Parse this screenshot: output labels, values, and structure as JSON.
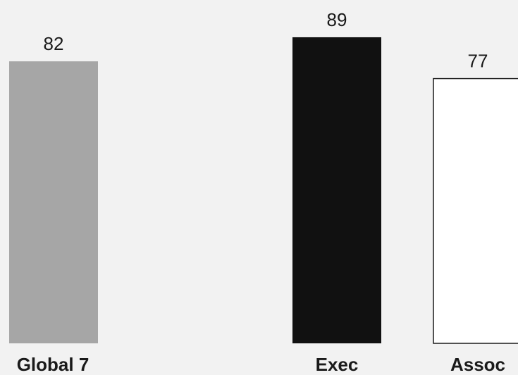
{
  "chart_data": {
    "type": "bar",
    "categories": [
      "Global 7",
      "Exec",
      "Assoc"
    ],
    "values": [
      82,
      89,
      77
    ],
    "title": "",
    "xlabel": "",
    "ylabel": "",
    "ylim": [
      0,
      100
    ],
    "grid": false,
    "legend": "none",
    "colors": [
      "#a6a6a6",
      "#111111",
      "#ffffff"
    ]
  },
  "colors": {
    "background": "#f2f2f2",
    "text": "#1a1a1a",
    "bar_outline": "#1a1a1a"
  }
}
